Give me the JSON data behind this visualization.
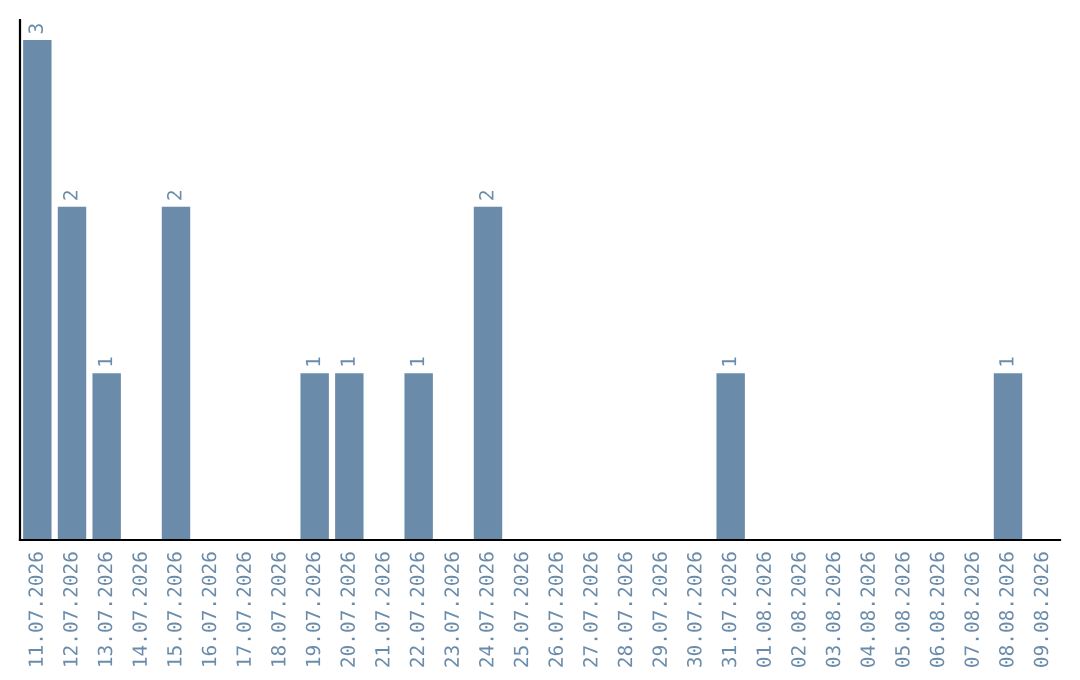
{
  "chart_data": {
    "type": "bar",
    "categories": [
      "11.07.2026",
      "12.07.2026",
      "13.07.2026",
      "14.07.2026",
      "15.07.2026",
      "16.07.2026",
      "17.07.2026",
      "18.07.2026",
      "19.07.2026",
      "20.07.2026",
      "21.07.2026",
      "22.07.2026",
      "23.07.2026",
      "24.07.2026",
      "25.07.2026",
      "26.07.2026",
      "27.07.2026",
      "28.07.2026",
      "29.07.2026",
      "30.07.2026",
      "31.07.2026",
      "01.08.2026",
      "02.08.2026",
      "03.08.2026",
      "04.08.2026",
      "05.08.2026",
      "06.08.2026",
      "07.08.2026",
      "08.08.2026",
      "09.08.2026"
    ],
    "values": [
      3,
      2,
      1,
      0,
      2,
      0,
      0,
      0,
      1,
      1,
      0,
      1,
      0,
      2,
      0,
      0,
      0,
      0,
      0,
      0,
      1,
      0,
      0,
      0,
      0,
      0,
      0,
      0,
      1,
      0
    ],
    "value_labels": [
      "3",
      "2",
      "1",
      null,
      "2",
      null,
      null,
      null,
      "1",
      "1",
      null,
      "1",
      null,
      "2",
      null,
      null,
      null,
      null,
      null,
      null,
      "1",
      null,
      null,
      null,
      null,
      null,
      null,
      null,
      "1",
      null
    ],
    "color": "#6a8caa",
    "grid": false,
    "legend": false,
    "tick_labels": "x"
  }
}
